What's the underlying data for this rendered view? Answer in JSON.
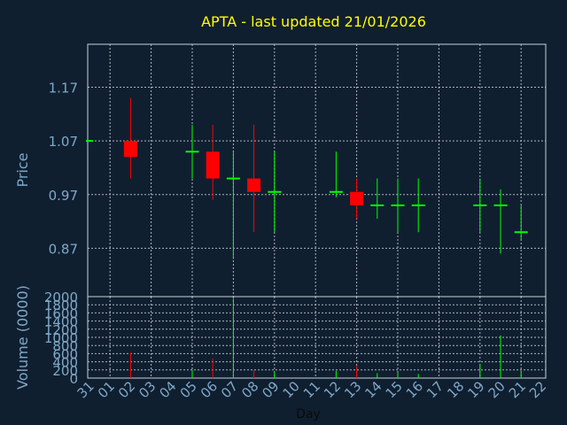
{
  "chart_data": {
    "type": "candlestick",
    "title": "APTA - last updated 21/01/2026",
    "price_panel": {
      "ylabel": "Price",
      "ylim": [
        0.78,
        1.25
      ],
      "yticks": [
        0.87,
        0.97,
        1.07,
        1.17
      ],
      "ytick_labels": [
        "0.87",
        "0.97",
        "1.07",
        "1.17"
      ]
    },
    "volume_panel": {
      "ylabel": "Volume (0000)",
      "ylim": [
        0,
        2000
      ],
      "yticks": [
        0,
        200,
        400,
        600,
        800,
        1000,
        1200,
        1400,
        1600,
        1800,
        2000
      ],
      "ytick_labels": [
        "0",
        "200",
        "400",
        "600",
        "800",
        "1000",
        "1200",
        "1400",
        "1600",
        "1800",
        "2000"
      ]
    },
    "xlabel": "Day",
    "x_labels": [
      "31",
      "01",
      "02",
      "03",
      "04",
      "05",
      "06",
      "07",
      "08",
      "09",
      "10",
      "11",
      "12",
      "13",
      "14",
      "15",
      "16",
      "17",
      "18",
      "19",
      "20",
      "21",
      "22"
    ],
    "candles": [
      {
        "day": "31",
        "open": 1.07,
        "close": 1.07,
        "high": 1.07,
        "low": 1.07,
        "volume": 0
      },
      {
        "day": "02",
        "open": 1.07,
        "close": 1.04,
        "high": 1.15,
        "low": 1.0,
        "volume": 620
      },
      {
        "day": "05",
        "open": 1.05,
        "close": 1.05,
        "high": 1.1,
        "low": 1.0,
        "volume": 200
      },
      {
        "day": "06",
        "open": 1.05,
        "close": 1.0,
        "high": 1.1,
        "low": 0.96,
        "volume": 480
      },
      {
        "day": "07",
        "open": 1.0,
        "close": 1.0,
        "high": 1.05,
        "low": 0.85,
        "volume": 1950
      },
      {
        "day": "08",
        "open": 1.0,
        "close": 0.975,
        "high": 1.1,
        "low": 0.9,
        "volume": 200
      },
      {
        "day": "09",
        "open": 0.975,
        "close": 0.975,
        "high": 1.05,
        "low": 0.9,
        "volume": 150
      },
      {
        "day": "12",
        "open": 0.975,
        "close": 0.975,
        "high": 1.05,
        "low": 0.965,
        "volume": 180
      },
      {
        "day": "13",
        "open": 0.975,
        "close": 0.95,
        "high": 1.0,
        "low": 0.925,
        "volume": 300
      },
      {
        "day": "14",
        "open": 0.95,
        "close": 0.95,
        "high": 1.0,
        "low": 0.925,
        "volume": 120
      },
      {
        "day": "15",
        "open": 0.95,
        "close": 0.95,
        "high": 1.0,
        "low": 0.9,
        "volume": 130
      },
      {
        "day": "16",
        "open": 0.95,
        "close": 0.95,
        "high": 1.0,
        "low": 0.9,
        "volume": 100
      },
      {
        "day": "19",
        "open": 0.95,
        "close": 0.95,
        "high": 1.0,
        "low": 0.9,
        "volume": 350
      },
      {
        "day": "20",
        "open": 0.95,
        "close": 0.95,
        "high": 0.98,
        "low": 0.86,
        "volume": 1050
      },
      {
        "day": "21",
        "open": 0.9,
        "close": 0.9,
        "high": 0.95,
        "low": 0.885,
        "volume": 180
      }
    ],
    "colors": {
      "background": "#0f1f30",
      "up": "#00ff00",
      "down": "#ff0000",
      "title": "#ffff00",
      "axis_text": "#7fa8c8",
      "grid": "#c8d0d8"
    },
    "grid": true
  }
}
